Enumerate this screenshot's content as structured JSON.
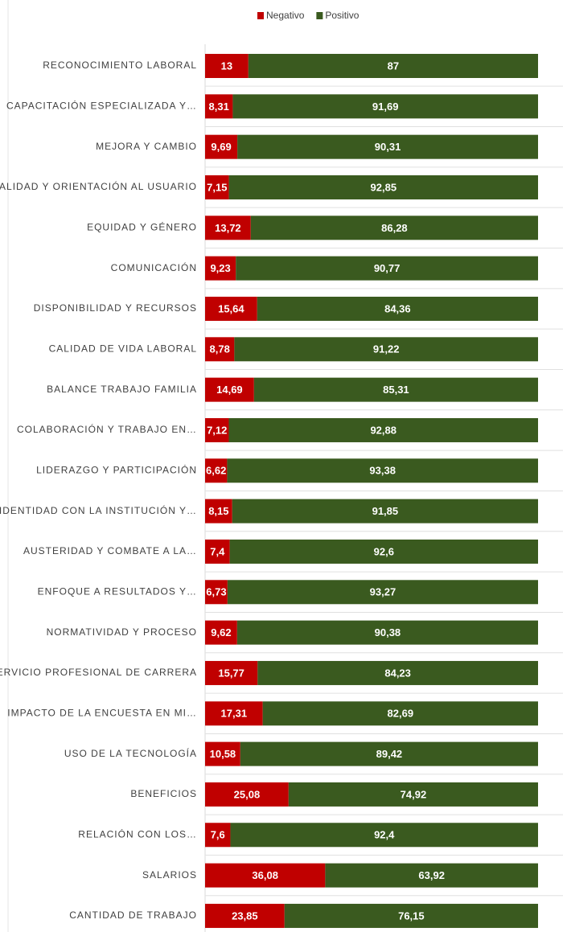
{
  "chart_data": {
    "type": "stacked_barh",
    "categories": [
      "RECONOCIMIENTO LABORAL",
      "CAPACITACIÓN ESPECIALIZADA Y…",
      "MEJORA Y CAMBIO",
      "CALIDAD Y ORIENTACIÓN AL USUARIO",
      "EQUIDAD Y GÉNERO",
      "COMUNICACIÓN",
      "DISPONIBILIDAD Y RECURSOS",
      "CALIDAD DE VIDA LABORAL",
      "BALANCE TRABAJO FAMILIA",
      "COLABORACIÓN Y TRABAJO EN…",
      "LIDERAZGO Y PARTICIPACIÓN",
      "IDENTIDAD CON LA INSTITUCIÓN Y…",
      "AUSTERIDAD Y COMBATE A LA…",
      "ENFOQUE A RESULTADOS Y…",
      "NORMATIVIDAD Y PROCESO",
      "SERVICIO PROFESIONAL DE CARRERA",
      "IMPACTO DE LA ENCUESTA EN MI…",
      "USO DE LA TECNOLOGÍA",
      "BENEFICIOS",
      "RELACIÓN CON LOS…",
      "SALARIOS",
      "CANTIDAD DE TRABAJO"
    ],
    "series": [
      {
        "name": "Negativo",
        "color": "#c00000",
        "values": [
          13,
          8.31,
          9.69,
          7.15,
          13.72,
          9.23,
          15.64,
          8.78,
          14.69,
          7.12,
          6.62,
          8.15,
          7.4,
          6.73,
          9.62,
          15.77,
          17.31,
          10.58,
          25.08,
          7.6,
          36.08,
          23.85
        ],
        "value_labels": [
          "13",
          "8,31",
          "9,69",
          "7,15",
          "13,72",
          "9,23",
          "15,64",
          "8,78",
          "14,69",
          "7,12",
          "6,62",
          "8,15",
          "7,4",
          "6,73",
          "9,62",
          "15,77",
          "17,31",
          "10,58",
          "25,08",
          "7,6",
          "36,08",
          "23,85"
        ]
      },
      {
        "name": "Positivo",
        "color": "#3a5a1f",
        "values": [
          87,
          91.69,
          90.31,
          92.85,
          86.28,
          90.77,
          84.36,
          91.22,
          85.31,
          92.88,
          93.38,
          91.85,
          92.6,
          93.27,
          90.38,
          84.23,
          82.69,
          89.42,
          74.92,
          92.4,
          63.92,
          76.15
        ],
        "value_labels": [
          "87",
          "91,69",
          "90,31",
          "92,85",
          "86,28",
          "90,77",
          "84,36",
          "91,22",
          "85,31",
          "92,88",
          "93,38",
          "91,85",
          "92,6",
          "93,27",
          "90,38",
          "84,23",
          "82,69",
          "89,42",
          "74,92",
          "92,4",
          "63,92",
          "76,15"
        ]
      }
    ],
    "xlim": [
      0,
      100
    ],
    "legend": "top"
  }
}
